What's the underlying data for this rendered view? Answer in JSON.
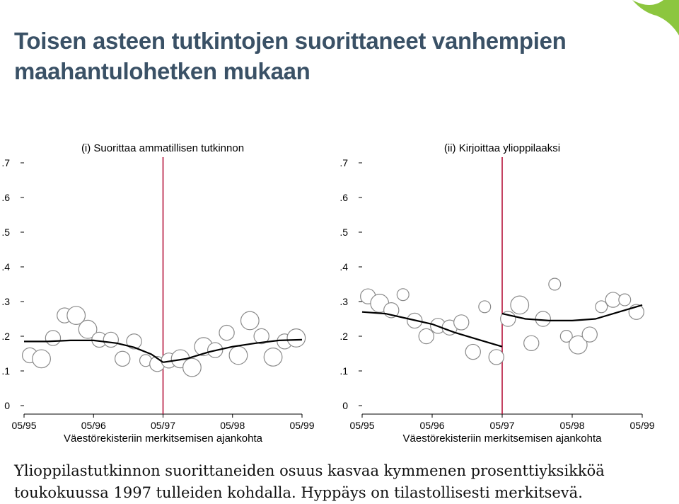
{
  "slide": {
    "title_line1": "Toisen asteen tutkintojen suorittaneet vanhempien",
    "title_line2": "maahantulohetken mukaan",
    "caption_line1": "Ylioppilastutkinnon suorittaneiden osuus kasvaa kymmenen prosenttiyksikköä",
    "caption_line2": "toukokuussa 1997 tulleiden kohdalla. Hyppäys on tilastollisesti merkitsevä."
  },
  "colors": {
    "title": "#3a5166",
    "cutoff_line": "#b5123a",
    "fit_line": "#000000",
    "bubble_fill": "#ffffff",
    "bubble_stroke": "#8a8a8a",
    "corner_accent": "#8cc63f"
  },
  "chart_data": [
    {
      "type": "scatter",
      "title": "(i) Suorittaa ammatillisen tutkinnon",
      "xlabel": "Väestörekisteriin merkitsemisen ajankohta",
      "ylabel": "",
      "x_ticks": [
        0,
        12,
        24,
        36,
        48
      ],
      "x_tick_labels": [
        "05/95",
        "05/96",
        "05/97",
        "05/98",
        "05/99"
      ],
      "y_ticks": [
        0,
        0.1,
        0.2,
        0.3,
        0.4,
        0.5,
        0.6,
        0.7
      ],
      "y_tick_labels": [
        "0",
        ".1",
        ".2",
        ".3",
        ".4",
        ".5",
        ".6",
        ".7"
      ],
      "xlim": [
        0,
        48
      ],
      "ylim": [
        0,
        0.7
      ],
      "cutoff_x": 24,
      "grid": false,
      "points": [
        {
          "x": 1,
          "y": 0.145,
          "size": 3
        },
        {
          "x": 3,
          "y": 0.135,
          "size": 4
        },
        {
          "x": 5,
          "y": 0.195,
          "size": 3
        },
        {
          "x": 7,
          "y": 0.26,
          "size": 3
        },
        {
          "x": 9,
          "y": 0.26,
          "size": 4
        },
        {
          "x": 11,
          "y": 0.22,
          "size": 4
        },
        {
          "x": 13,
          "y": 0.19,
          "size": 3
        },
        {
          "x": 15,
          "y": 0.19,
          "size": 3
        },
        {
          "x": 17,
          "y": 0.135,
          "size": 3
        },
        {
          "x": 19,
          "y": 0.185,
          "size": 3
        },
        {
          "x": 21,
          "y": 0.13,
          "size": 2
        },
        {
          "x": 23,
          "y": 0.12,
          "size": 3
        },
        {
          "x": 25,
          "y": 0.13,
          "size": 3
        },
        {
          "x": 27,
          "y": 0.135,
          "size": 4
        },
        {
          "x": 29,
          "y": 0.11,
          "size": 4
        },
        {
          "x": 31,
          "y": 0.17,
          "size": 4
        },
        {
          "x": 33,
          "y": 0.16,
          "size": 3
        },
        {
          "x": 35,
          "y": 0.21,
          "size": 3
        },
        {
          "x": 37,
          "y": 0.145,
          "size": 4
        },
        {
          "x": 39,
          "y": 0.245,
          "size": 4
        },
        {
          "x": 41,
          "y": 0.2,
          "size": 3
        },
        {
          "x": 43,
          "y": 0.14,
          "size": 4
        },
        {
          "x": 45,
          "y": 0.185,
          "size": 3
        },
        {
          "x": 47,
          "y": 0.195,
          "size": 4
        }
      ],
      "fit_left": [
        {
          "x": 0,
          "y": 0.185
        },
        {
          "x": 4,
          "y": 0.185
        },
        {
          "x": 8,
          "y": 0.188
        },
        {
          "x": 12,
          "y": 0.188
        },
        {
          "x": 16,
          "y": 0.18
        },
        {
          "x": 19,
          "y": 0.168
        },
        {
          "x": 22,
          "y": 0.148
        },
        {
          "x": 24,
          "y": 0.125
        }
      ],
      "fit_right": [
        {
          "x": 24,
          "y": 0.125
        },
        {
          "x": 28,
          "y": 0.135
        },
        {
          "x": 32,
          "y": 0.155
        },
        {
          "x": 36,
          "y": 0.17
        },
        {
          "x": 40,
          "y": 0.18
        },
        {
          "x": 44,
          "y": 0.188
        },
        {
          "x": 48,
          "y": 0.19
        }
      ]
    },
    {
      "type": "scatter",
      "title": "(ii) Kirjoittaa ylioppilaaksi",
      "xlabel": "Väestörekisteriin merkitsemisen ajankohta",
      "ylabel": "",
      "x_ticks": [
        0,
        12,
        24,
        36,
        48
      ],
      "x_tick_labels": [
        "05/95",
        "05/96",
        "05/97",
        "05/98",
        "05/99"
      ],
      "y_ticks": [
        0,
        0.1,
        0.2,
        0.3,
        0.4,
        0.5,
        0.6,
        0.7
      ],
      "y_tick_labels": [
        "0",
        ".1",
        ".2",
        ".3",
        ".4",
        ".5",
        ".6",
        ".7"
      ],
      "xlim": [
        0,
        48
      ],
      "ylim": [
        0,
        0.7
      ],
      "cutoff_x": 24,
      "grid": false,
      "points": [
        {
          "x": 1,
          "y": 0.315,
          "size": 3
        },
        {
          "x": 3,
          "y": 0.295,
          "size": 4
        },
        {
          "x": 5,
          "y": 0.275,
          "size": 3
        },
        {
          "x": 7,
          "y": 0.32,
          "size": 2
        },
        {
          "x": 9,
          "y": 0.245,
          "size": 3
        },
        {
          "x": 11,
          "y": 0.2,
          "size": 3
        },
        {
          "x": 13,
          "y": 0.23,
          "size": 3
        },
        {
          "x": 15,
          "y": 0.225,
          "size": 3
        },
        {
          "x": 17,
          "y": 0.24,
          "size": 3
        },
        {
          "x": 19,
          "y": 0.155,
          "size": 3
        },
        {
          "x": 21,
          "y": 0.285,
          "size": 2
        },
        {
          "x": 23,
          "y": 0.14,
          "size": 3
        },
        {
          "x": 25,
          "y": 0.25,
          "size": 3
        },
        {
          "x": 27,
          "y": 0.29,
          "size": 4
        },
        {
          "x": 29,
          "y": 0.18,
          "size": 3
        },
        {
          "x": 31,
          "y": 0.25,
          "size": 3
        },
        {
          "x": 33,
          "y": 0.35,
          "size": 2
        },
        {
          "x": 35,
          "y": 0.2,
          "size": 2
        },
        {
          "x": 37,
          "y": 0.175,
          "size": 4
        },
        {
          "x": 39,
          "y": 0.205,
          "size": 3
        },
        {
          "x": 41,
          "y": 0.285,
          "size": 2
        },
        {
          "x": 43,
          "y": 0.305,
          "size": 3
        },
        {
          "x": 45,
          "y": 0.305,
          "size": 2
        },
        {
          "x": 47,
          "y": 0.27,
          "size": 3
        }
      ],
      "fit_left": [
        {
          "x": 0,
          "y": 0.27
        },
        {
          "x": 4,
          "y": 0.265
        },
        {
          "x": 8,
          "y": 0.25
        },
        {
          "x": 12,
          "y": 0.235
        },
        {
          "x": 16,
          "y": 0.21
        },
        {
          "x": 20,
          "y": 0.19
        },
        {
          "x": 24,
          "y": 0.17
        }
      ],
      "fit_right": [
        {
          "x": 24,
          "y": 0.265
        },
        {
          "x": 28,
          "y": 0.25
        },
        {
          "x": 32,
          "y": 0.245
        },
        {
          "x": 36,
          "y": 0.245
        },
        {
          "x": 40,
          "y": 0.25
        },
        {
          "x": 44,
          "y": 0.27
        },
        {
          "x": 48,
          "y": 0.29
        }
      ]
    }
  ]
}
